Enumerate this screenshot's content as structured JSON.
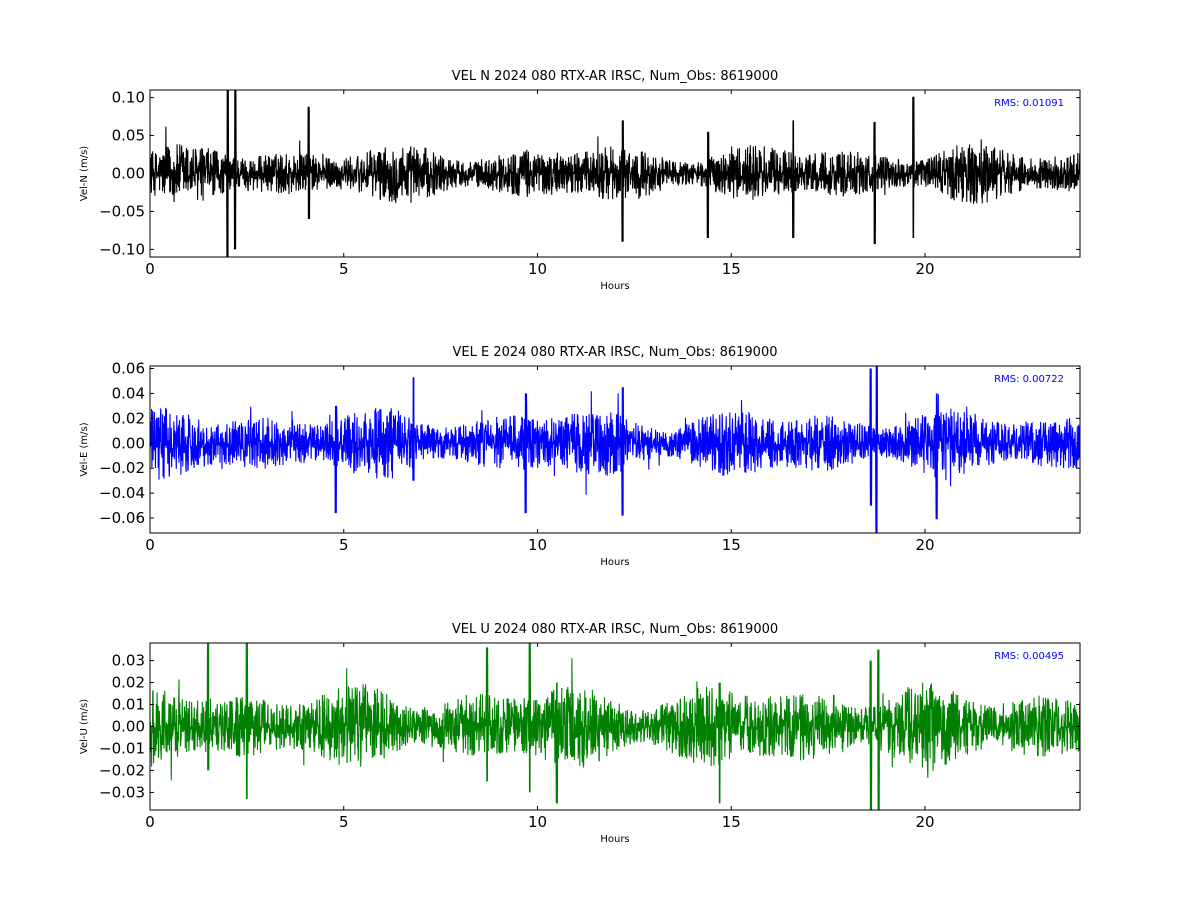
{
  "chart_data": [
    {
      "type": "line",
      "title": "VEL N 2024 080 RTX-AR  IRSC, Num_Obs: 8619000",
      "xlabel": "Hours",
      "ylabel": "Vel-N (m/s)",
      "xlim": [
        0,
        24
      ],
      "ylim": [
        -0.11,
        0.11
      ],
      "xticks": [
        0,
        5,
        10,
        15,
        20
      ],
      "xtick_labels": [
        "0",
        "5",
        "10",
        "15",
        "20"
      ],
      "yticks": [
        0.1,
        0.05,
        0.0,
        -0.05,
        -0.1
      ],
      "ytick_labels": [
        "0.10",
        "0.05",
        "0.00",
        "−0.05",
        "−0.10"
      ],
      "rms_label": "RMS:  0.01091",
      "rms": 0.01091,
      "color": "#000000",
      "series": [
        {
          "values_note": "dense velocity time series (~8.6M observations); approximated by envelope samples",
          "bursts": [
            {
              "x": 2.0,
              "y_max": 0.112,
              "y_min": -0.11
            },
            {
              "x": 2.2,
              "y_max": 0.11,
              "y_min": -0.1
            },
            {
              "x": 4.1,
              "y_max": 0.088,
              "y_min": -0.06
            },
            {
              "x": 12.2,
              "y_max": 0.07,
              "y_min": -0.09
            },
            {
              "x": 14.4,
              "y_max": 0.055,
              "y_min": -0.085
            },
            {
              "x": 16.6,
              "y_max": 0.07,
              "y_min": -0.085
            },
            {
              "x": 18.7,
              "y_max": 0.068,
              "y_min": -0.093
            },
            {
              "x": 19.7,
              "y_max": 0.101,
              "y_min": -0.085
            }
          ],
          "base_amplitude": 0.03
        }
      ]
    },
    {
      "type": "line",
      "title": "VEL E 2024 080 RTX-AR  IRSC, Num_Obs: 8619000",
      "xlabel": "Hours",
      "ylabel": "Vel-E (m/s)",
      "xlim": [
        0,
        24
      ],
      "ylim": [
        -0.072,
        0.062
      ],
      "xticks": [
        0,
        5,
        10,
        15,
        20
      ],
      "xtick_labels": [
        "0",
        "5",
        "10",
        "15",
        "20"
      ],
      "yticks": [
        0.06,
        0.04,
        0.02,
        0.0,
        -0.02,
        -0.04,
        -0.06
      ],
      "ytick_labels": [
        "0.06",
        "0.04",
        "0.02",
        "0.00",
        "−0.02",
        "−0.04",
        "−0.06"
      ],
      "rms_label": "RMS:  0.00722",
      "rms": 0.00722,
      "color": "#0000ff",
      "series": [
        {
          "values_note": "dense velocity time series; approximated by envelope samples",
          "bursts": [
            {
              "x": 4.8,
              "y_max": 0.03,
              "y_min": -0.056
            },
            {
              "x": 6.8,
              "y_max": 0.053,
              "y_min": -0.03
            },
            {
              "x": 9.7,
              "y_max": 0.04,
              "y_min": -0.056
            },
            {
              "x": 12.2,
              "y_max": 0.045,
              "y_min": -0.058
            },
            {
              "x": 18.6,
              "y_max": 0.06,
              "y_min": -0.05
            },
            {
              "x": 18.75,
              "y_max": 0.062,
              "y_min": -0.072
            },
            {
              "x": 20.3,
              "y_max": 0.04,
              "y_min": -0.061
            }
          ],
          "base_amplitude": 0.022
        }
      ]
    },
    {
      "type": "line",
      "title": "VEL U 2024 080 RTX-AR  IRSC, Num_Obs: 8619000",
      "xlabel": "Hours",
      "ylabel": "Vel-U (m/s)",
      "xlim": [
        0,
        24
      ],
      "ylim": [
        -0.038,
        0.038
      ],
      "xticks": [
        0,
        5,
        10,
        15,
        20
      ],
      "xtick_labels": [
        "0",
        "5",
        "10",
        "15",
        "20"
      ],
      "yticks": [
        0.03,
        0.02,
        0.01,
        0.0,
        -0.01,
        -0.02,
        -0.03
      ],
      "ytick_labels": [
        "0.03",
        "0.02",
        "0.01",
        "0.00",
        "−0.01",
        "−0.02",
        "−0.03"
      ],
      "rms_label": "RMS:  0.00495",
      "rms": 0.00495,
      "color": "#008000",
      "series": [
        {
          "values_note": "dense velocity time series; approximated by envelope samples",
          "bursts": [
            {
              "x": 1.5,
              "y_max": 0.038,
              "y_min": -0.02
            },
            {
              "x": 2.5,
              "y_max": 0.038,
              "y_min": -0.033
            },
            {
              "x": 8.7,
              "y_max": 0.036,
              "y_min": -0.025
            },
            {
              "x": 9.8,
              "y_max": 0.038,
              "y_min": -0.03
            },
            {
              "x": 10.5,
              "y_max": 0.02,
              "y_min": -0.035
            },
            {
              "x": 14.7,
              "y_max": 0.02,
              "y_min": -0.035
            },
            {
              "x": 18.6,
              "y_max": 0.03,
              "y_min": -0.038
            },
            {
              "x": 18.8,
              "y_max": 0.035,
              "y_min": -0.038
            }
          ],
          "base_amplitude": 0.015
        }
      ]
    }
  ]
}
